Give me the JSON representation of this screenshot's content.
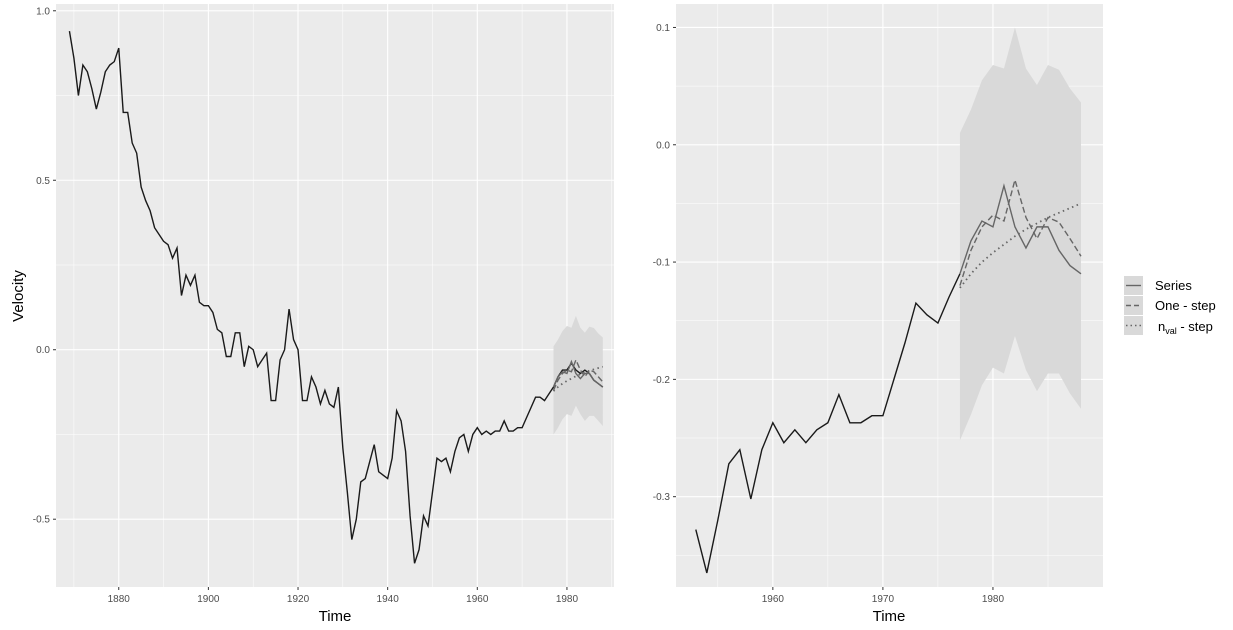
{
  "chart_data": [
    {
      "type": "line",
      "xlabel": "Time",
      "ylabel": "Velocity",
      "xlim": [
        1866,
        1990.5
      ],
      "ylim": [
        -0.7,
        1.02
      ],
      "x_ticks": [
        1880,
        1900,
        1920,
        1940,
        1960,
        1980
      ],
      "y_ticks": [
        -0.5,
        0.0,
        0.5,
        1.0
      ],
      "y_tick_labels": [
        "-0.5",
        "0.0",
        "0.5",
        "1.0"
      ],
      "grid": true,
      "series_main": {
        "x": [
          1869,
          1870,
          1871,
          1872,
          1873,
          1874,
          1875,
          1876,
          1877,
          1878,
          1879,
          1880,
          1881,
          1882,
          1883,
          1884,
          1885,
          1886,
          1887,
          1888,
          1889,
          1890,
          1891,
          1892,
          1893,
          1894,
          1895,
          1896,
          1897,
          1898,
          1899,
          1900,
          1901,
          1902,
          1903,
          1904,
          1905,
          1906,
          1907,
          1908,
          1909,
          1910,
          1911,
          1912,
          1913,
          1914,
          1915,
          1916,
          1917,
          1918,
          1919,
          1920,
          1921,
          1922,
          1923,
          1924,
          1925,
          1926,
          1927,
          1928,
          1929,
          1930,
          1931,
          1932,
          1933,
          1934,
          1935,
          1936,
          1937,
          1938,
          1939,
          1940,
          1941,
          1942,
          1943,
          1944,
          1945,
          1946,
          1947,
          1948,
          1949,
          1950,
          1951,
          1952,
          1953,
          1954,
          1955,
          1956,
          1957,
          1958,
          1959,
          1960,
          1961,
          1962,
          1963,
          1964,
          1965,
          1966,
          1967,
          1968,
          1969,
          1970,
          1971,
          1972,
          1973,
          1974,
          1975,
          1976,
          1977,
          1978,
          1979,
          1980,
          1981,
          1982,
          1983,
          1984,
          1985,
          1986,
          1987,
          1988
        ],
        "y": [
          0.94,
          0.86,
          0.75,
          0.84,
          0.82,
          0.77,
          0.71,
          0.76,
          0.82,
          0.84,
          0.85,
          0.89,
          0.7,
          0.7,
          0.61,
          0.58,
          0.48,
          0.44,
          0.41,
          0.36,
          0.34,
          0.32,
          0.31,
          0.27,
          0.3,
          0.16,
          0.22,
          0.19,
          0.22,
          0.14,
          0.13,
          0.13,
          0.11,
          0.06,
          0.05,
          -0.02,
          -0.02,
          0.05,
          0.05,
          -0.05,
          0.01,
          0.0,
          -0.05,
          -0.03,
          -0.01,
          -0.15,
          -0.15,
          -0.03,
          0.0,
          0.12,
          0.03,
          0.0,
          -0.15,
          -0.15,
          -0.08,
          -0.11,
          -0.16,
          -0.12,
          -0.16,
          -0.17,
          -0.11,
          -0.29,
          -0.42,
          -0.56,
          -0.5,
          -0.39,
          -0.38,
          -0.33,
          -0.28,
          -0.36,
          -0.37,
          -0.38,
          -0.32,
          -0.18,
          -0.21,
          -0.3,
          -0.49,
          -0.63,
          -0.59,
          -0.49,
          -0.52,
          -0.42,
          -0.32,
          -0.33,
          -0.32,
          -0.36,
          -0.3,
          -0.26,
          -0.25,
          -0.3,
          -0.25,
          -0.23,
          -0.25,
          -0.24,
          -0.25,
          -0.24,
          -0.24,
          -0.21,
          -0.24,
          -0.24,
          -0.23,
          -0.23,
          -0.2,
          -0.17,
          -0.14,
          -0.14,
          -0.15,
          -0.13,
          -0.11,
          -0.08,
          -0.06,
          -0.06,
          -0.04,
          -0.06,
          -0.07,
          -0.06,
          -0.07,
          -0.09,
          -0.1,
          -0.11
        ]
      },
      "series": [
        {
          "name": "Series",
          "style": "solid",
          "x": [
            1977,
            1978,
            1979,
            1980,
            1981,
            1982,
            1983,
            1984,
            1985,
            1986,
            1987,
            1988
          ],
          "y": [
            -0.11,
            -0.08,
            -0.065,
            -0.07,
            -0.035,
            -0.07,
            -0.085,
            -0.07,
            -0.07,
            -0.09,
            -0.1,
            -0.11
          ]
        },
        {
          "name": "One - step",
          "style": "dashed",
          "x": [
            1977,
            1978,
            1979,
            1980,
            1981,
            1982,
            1983,
            1984,
            1985,
            1986,
            1987,
            1988
          ],
          "y": [
            -0.12,
            -0.09,
            -0.07,
            -0.06,
            -0.065,
            -0.03,
            -0.06,
            -0.08,
            -0.06,
            -0.065,
            -0.08,
            -0.095
          ]
        },
        {
          "name": "n_val - step",
          "style": "dotted",
          "x": [
            1977,
            1978,
            1979,
            1980,
            1981,
            1982,
            1983,
            1984,
            1985,
            1986,
            1987,
            1988
          ],
          "y": [
            -0.122,
            -0.11,
            -0.1,
            -0.092,
            -0.085,
            -0.078,
            -0.072,
            -0.067,
            -0.062,
            -0.058,
            -0.054,
            -0.05
          ]
        }
      ],
      "band": {
        "x": [
          1977,
          1978,
          1979,
          1980,
          1981,
          1982,
          1983,
          1984,
          1985,
          1986,
          1987,
          1988
        ],
        "lower": [
          -0.25,
          -0.23,
          -0.205,
          -0.19,
          -0.195,
          -0.165,
          -0.19,
          -0.21,
          -0.195,
          -0.195,
          -0.21,
          -0.225
        ],
        "upper": [
          0.01,
          0.03,
          0.055,
          0.07,
          0.065,
          0.1,
          0.065,
          0.05,
          0.068,
          0.064,
          0.048,
          0.036
        ]
      }
    },
    {
      "type": "line",
      "xlabel": "Time",
      "ylabel": "",
      "xlim": [
        1951.2,
        1990.0
      ],
      "ylim": [
        -0.377,
        0.12
      ],
      "x_ticks": [
        1960,
        1970,
        1980
      ],
      "y_ticks": [
        -0.3,
        -0.2,
        -0.1,
        0.0,
        0.1
      ],
      "y_tick_labels": [
        "-0.3",
        "-0.2",
        "-0.1",
        "0.0",
        "0.1"
      ],
      "grid": true,
      "series_main": {
        "x": [
          1953,
          1954,
          1955,
          1956,
          1957,
          1958,
          1959,
          1960,
          1961,
          1962,
          1963,
          1964,
          1965,
          1966,
          1967,
          1968,
          1969,
          1970,
          1971,
          1972,
          1973,
          1974,
          1975,
          1976,
          1977
        ],
        "y": [
          -0.328,
          -0.365,
          -0.32,
          -0.272,
          -0.26,
          -0.302,
          -0.26,
          -0.237,
          -0.254,
          -0.243,
          -0.254,
          -0.243,
          -0.237,
          -0.213,
          -0.237,
          -0.237,
          -0.231,
          -0.231,
          -0.2,
          -0.169,
          -0.135,
          -0.145,
          -0.152,
          -0.13,
          -0.11
        ]
      },
      "series": [
        {
          "name": "Series",
          "style": "solid",
          "x": [
            1977,
            1978,
            1979,
            1980,
            1981,
            1982,
            1983,
            1984,
            1985,
            1986,
            1987,
            1988
          ],
          "y": [
            -0.11,
            -0.082,
            -0.065,
            -0.07,
            -0.035,
            -0.07,
            -0.088,
            -0.07,
            -0.07,
            -0.09,
            -0.103,
            -0.11
          ]
        },
        {
          "name": "One - step",
          "style": "dashed",
          "x": [
            1977,
            1978,
            1979,
            1980,
            1981,
            1982,
            1983,
            1984,
            1985,
            1986,
            1987,
            1988
          ],
          "y": [
            -0.12,
            -0.09,
            -0.07,
            -0.06,
            -0.065,
            -0.03,
            -0.062,
            -0.08,
            -0.062,
            -0.066,
            -0.08,
            -0.095
          ]
        },
        {
          "name": "n_val - step",
          "style": "dotted",
          "x": [
            1977,
            1978,
            1979,
            1980,
            1981,
            1982,
            1983,
            1984,
            1985,
            1986,
            1987,
            1988
          ],
          "y": [
            -0.122,
            -0.11,
            -0.1,
            -0.092,
            -0.085,
            -0.078,
            -0.072,
            -0.067,
            -0.062,
            -0.058,
            -0.054,
            -0.05
          ]
        }
      ],
      "band": {
        "x": [
          1977,
          1978,
          1979,
          1980,
          1981,
          1982,
          1983,
          1984,
          1985,
          1986,
          1987,
          1988
        ],
        "lower": [
          -0.252,
          -0.23,
          -0.205,
          -0.19,
          -0.195,
          -0.163,
          -0.192,
          -0.21,
          -0.195,
          -0.195,
          -0.212,
          -0.225
        ],
        "upper": [
          0.01,
          0.03,
          0.055,
          0.068,
          0.065,
          0.1,
          0.065,
          0.051,
          0.068,
          0.064,
          0.048,
          0.036
        ]
      }
    }
  ],
  "legend": {
    "position": "right",
    "entries": [
      {
        "label": "Series",
        "style": "solid"
      },
      {
        "label": "One - step",
        "style": "dashed"
      },
      {
        "label_main": "n",
        "label_sub": "val",
        "label_rest": " - step",
        "style": "dotted"
      }
    ]
  },
  "colors": {
    "panel_bg": "#ebebeb",
    "grid": "#ffffff",
    "band": "#d9d9d9",
    "main_line": "#1a1a1a",
    "forecast_line": "#666666"
  }
}
